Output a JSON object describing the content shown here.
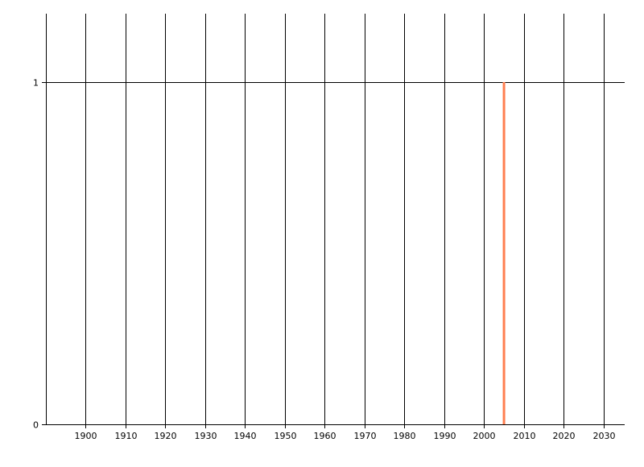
{
  "chart_data": {
    "type": "bar",
    "title": "",
    "xlabel": "",
    "ylabel": "",
    "xlim": [
      1890,
      2035.3
    ],
    "ylim": [
      0,
      1.2
    ],
    "x_ticks": [
      1900,
      1910,
      1920,
      1930,
      1940,
      1950,
      1960,
      1970,
      1980,
      1990,
      2000,
      2010,
      2020,
      2030
    ],
    "y_ticks": [
      0,
      1
    ],
    "grid": true,
    "series": [
      {
        "x": [
          2005
        ],
        "values": [
          1
        ],
        "color": "#FF7F50"
      }
    ]
  }
}
